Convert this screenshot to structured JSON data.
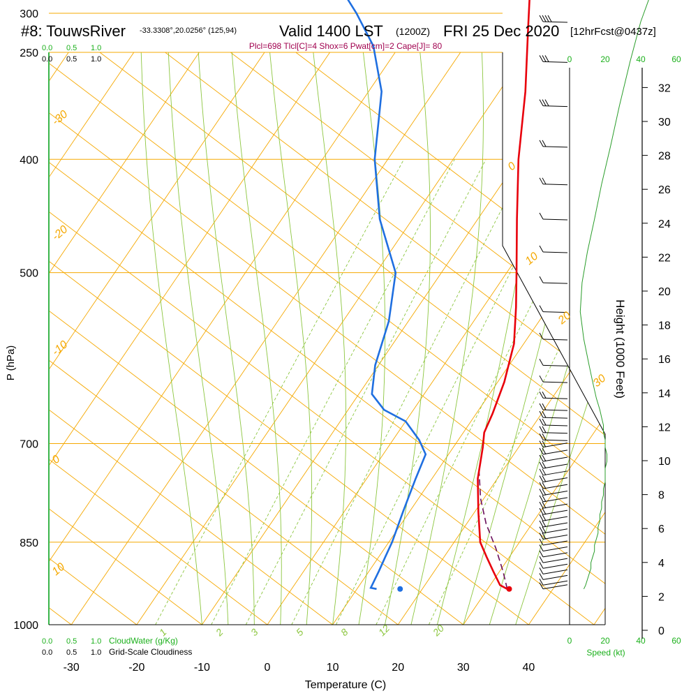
{
  "header": {
    "station": "#8: TouwsRiver",
    "coords": "-33.3308°,20.0256° (125,94)",
    "valid": "Valid 1400 LST",
    "zulu": "(1200Z)",
    "date": "FRI 25 Dec 2020",
    "forecast": "[12hrFcst@0437z]",
    "indices": "Plcl=698 Tlcl[C]=4 Shox=6 Pwat[cm]=2 Cape[J]= 80"
  },
  "colors": {
    "isotherm": "#f5a800",
    "isobar": "#f5a800",
    "dry_adiabat": "#f5a800",
    "moist_adiabat": "#8cc63f",
    "mixing_ratio": "#8cc63f",
    "temperature": "#e8000b",
    "dewpoint": "#1f6fe0",
    "parcel": "#6a0d5a",
    "green_text": "#1bb01b",
    "indices_text": "#a0004e"
  },
  "chart_data": {
    "type": "line",
    "title": "#8: TouwsRiver  Valid 1400 LST (1200Z) FRI 25 Dec 2020 [12hrFcst@0437z]",
    "xlabel": "Temperature (C)",
    "ylabel": "P (hPa)",
    "right_label": "Height (1000 Feet)",
    "x_ticks": [
      -30,
      -20,
      -10,
      0,
      10,
      20,
      30,
      40
    ],
    "p_ticks": [
      250,
      300,
      400,
      500,
      700,
      850,
      1000
    ],
    "height_ticks": [
      0,
      2,
      4,
      6,
      8,
      10,
      12,
      14,
      16,
      18,
      20,
      22,
      24,
      26,
      28,
      30,
      32
    ],
    "skew_isotherm_labels": [
      "-30",
      "-20",
      "-10",
      "0",
      "10",
      "20",
      "30",
      "0",
      "10",
      "20",
      "30"
    ],
    "mixing_ratio_labels": [
      "1",
      "2",
      "3",
      "5",
      "8",
      "12",
      "20"
    ],
    "cloud_scale": [
      "0.0",
      "0.5",
      "1.0"
    ],
    "cloud_water_label": "CloudWater (g/Kg)",
    "grid_cloud_label": "Grid-Scale Cloudiness",
    "speed_ticks": [
      "0",
      "20",
      "40",
      "60"
    ],
    "speed_label": "Speed (kt)",
    "series": [
      {
        "name": "Temperature",
        "points": [
          [
            33.0,
            932
          ],
          [
            31.5,
            925
          ],
          [
            29.0,
            900
          ],
          [
            26.5,
            875
          ],
          [
            24.0,
            850
          ],
          [
            20.5,
            800
          ],
          [
            17.0,
            750
          ],
          [
            14.5,
            705
          ],
          [
            13.2,
            685
          ],
          [
            12.5,
            660
          ],
          [
            11.0,
            620
          ],
          [
            8.5,
            575
          ],
          [
            5.0,
            535
          ],
          [
            1.5,
            500
          ],
          [
            -4.0,
            450
          ],
          [
            -10.0,
            400
          ],
          [
            -16.0,
            350
          ],
          [
            -22.0,
            310
          ],
          [
            -27.0,
            280
          ],
          [
            -32.0,
            258
          ]
        ]
      },
      {
        "name": "Dewpoint",
        "points": [
          [
            13.0,
            932
          ],
          [
            12.0,
            930
          ],
          [
            11.5,
            900
          ],
          [
            11.0,
            875
          ],
          [
            10.5,
            850
          ],
          [
            9.0,
            800
          ],
          [
            7.5,
            750
          ],
          [
            6.5,
            715
          ],
          [
            4.0,
            695
          ],
          [
            0.0,
            670
          ],
          [
            -4.5,
            655
          ],
          [
            -8.0,
            635
          ],
          [
            -10.5,
            600
          ],
          [
            -13.0,
            550
          ],
          [
            -17.0,
            500
          ],
          [
            -25.0,
            450
          ],
          [
            -32.0,
            400
          ],
          [
            -38.0,
            350
          ],
          [
            -44.0,
            320
          ],
          [
            -50.0,
            300
          ],
          [
            -57.0,
            280
          ],
          [
            -62.0,
            258
          ]
        ]
      },
      {
        "name": "Parcel",
        "points": [
          [
            33.0,
            932
          ],
          [
            30.5,
            900
          ],
          [
            27.0,
            860
          ],
          [
            23.0,
            820
          ],
          [
            19.5,
            780
          ],
          [
            16.5,
            740
          ],
          [
            14.5,
            705
          ]
        ]
      }
    ],
    "surface_temp": [
      33.3,
      932
    ],
    "surface_dewpoint": [
      16.6,
      932
    ],
    "wind_profile_kt": [
      [
        932,
        8
      ],
      [
        925,
        9
      ],
      [
        915,
        10
      ],
      [
        905,
        11
      ],
      [
        895,
        12
      ],
      [
        885,
        12
      ],
      [
        875,
        13
      ],
      [
        865,
        14
      ],
      [
        855,
        14
      ],
      [
        845,
        15
      ],
      [
        835,
        16
      ],
      [
        825,
        16
      ],
      [
        815,
        17
      ],
      [
        805,
        17
      ],
      [
        795,
        18
      ],
      [
        785,
        18
      ],
      [
        775,
        19
      ],
      [
        765,
        19
      ],
      [
        755,
        20
      ],
      [
        745,
        20
      ],
      [
        735,
        20
      ],
      [
        725,
        21
      ],
      [
        715,
        21
      ],
      [
        705,
        20
      ],
      [
        695,
        20
      ],
      [
        685,
        19
      ],
      [
        675,
        19
      ],
      [
        665,
        18
      ],
      [
        655,
        17
      ],
      [
        640,
        15
      ],
      [
        620,
        13
      ],
      [
        600,
        11
      ],
      [
        570,
        8
      ],
      [
        540,
        6
      ],
      [
        510,
        7
      ],
      [
        480,
        10
      ],
      [
        450,
        14
      ],
      [
        420,
        18
      ],
      [
        390,
        23
      ],
      [
        360,
        28
      ],
      [
        330,
        34
      ],
      [
        305,
        40
      ],
      [
        285,
        47
      ],
      [
        262,
        55
      ]
    ]
  }
}
